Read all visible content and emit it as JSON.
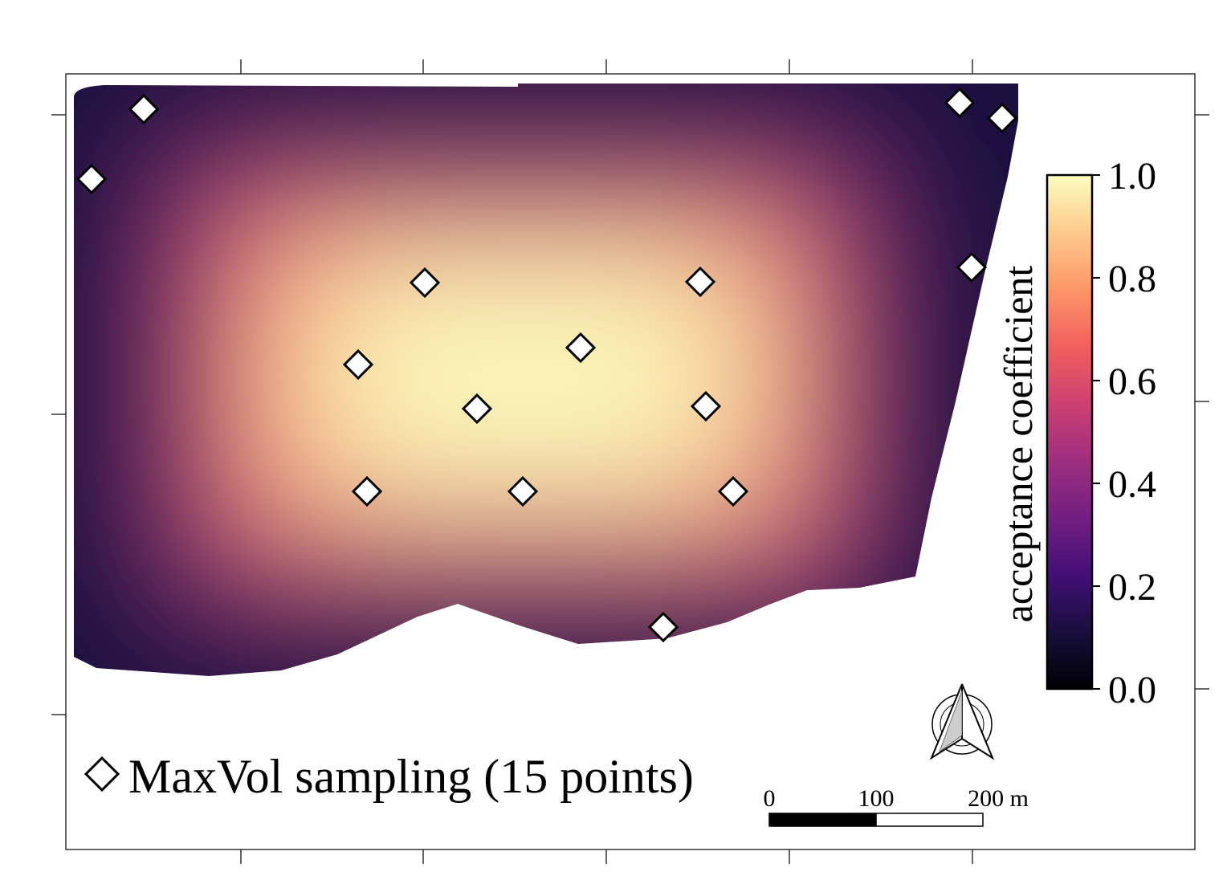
{
  "map": {
    "colorbar": {
      "label": "acceptance coefficient",
      "ticks": [
        "1.0",
        "0.8",
        "0.6",
        "0.4",
        "0.2",
        "0.0"
      ],
      "colormap": "magma",
      "stops": [
        "#000004",
        "#180f3d",
        "#440f76",
        "#721f81",
        "#9e2f7f",
        "#cd4071",
        "#f1605d",
        "#fd9668",
        "#feca8d",
        "#fcfdbf"
      ]
    },
    "legend": {
      "label": "MaxVol sampling (15 points)",
      "marker": "white-diamond",
      "points_count": 15
    },
    "scalebar": {
      "labels": [
        "0",
        "100",
        "200 m"
      ]
    },
    "north_arrow": "north-arrow-icon",
    "field_color_high": "#fafabd",
    "background": "#ffffff"
  }
}
